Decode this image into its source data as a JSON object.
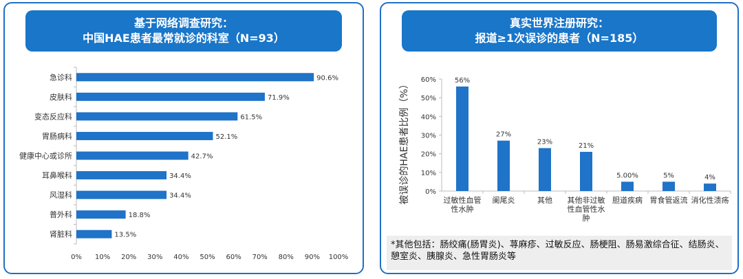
{
  "left_panel": {
    "title_line1": "基于网络调查研究：",
    "title_line2": "中国HAE患者最常就诊的科室（N=93）"
  },
  "right_panel": {
    "title_line1": "真实世界注册研究：",
    "title_line2": "报道≥1次误诊的患者（N=185）",
    "note": "*其他包括：肠绞痛(肠胃炎)、荨麻疹、过敏反应、肠梗阻、肠易激综合征、结肠炎、憩室炎、胰腺炎、急性胃肠炎等"
  },
  "colors": {
    "bar": "#1f73c8",
    "frame": "#1f6fc4",
    "title_bg": "#1976c9"
  },
  "chart_data": [
    {
      "type": "bar",
      "orientation": "horizontal",
      "categories": [
        "急诊科",
        "皮肤科",
        "变态反应科",
        "胃肠病科",
        "健康中心或诊所",
        "耳鼻喉科",
        "风湿科",
        "普外科",
        "肾脏科"
      ],
      "values": [
        90.6,
        71.9,
        61.5,
        52.1,
        42.7,
        34.4,
        34.4,
        18.8,
        13.5
      ],
      "data_labels": [
        "90.6%",
        "71.9%",
        "61.5%",
        "52.1%",
        "42.7%",
        "34.4%",
        "34.4%",
        "18.8%",
        "13.5%"
      ],
      "xlim": [
        0,
        100
      ],
      "x_ticks": [
        "0%",
        "10%",
        "20%",
        "30%",
        "40%",
        "50%",
        "60%",
        "70%",
        "80%",
        "90%",
        "100%"
      ],
      "grid": false
    },
    {
      "type": "bar",
      "orientation": "vertical",
      "categories": [
        [
          "过敏性血管",
          "性水肿"
        ],
        [
          "阑尾炎"
        ],
        [
          "其他"
        ],
        [
          "其他非过敏",
          "性血管性水",
          "肿"
        ],
        [
          "胆道疾病"
        ],
        [
          "胃食管返流"
        ],
        [
          "消化性溃疡"
        ]
      ],
      "values": [
        56,
        27,
        23,
        21,
        5,
        5,
        4
      ],
      "data_labels": [
        "56%",
        "27%",
        "23%",
        "21%",
        "5.00%",
        "5%",
        "4%"
      ],
      "ylabel": "被误诊的HAE患者比例（%）",
      "ylim": [
        0,
        60
      ],
      "y_ticks": [
        "0%",
        "10%",
        "20%",
        "30%",
        "40%",
        "50%",
        "60%"
      ],
      "grid": false
    }
  ]
}
